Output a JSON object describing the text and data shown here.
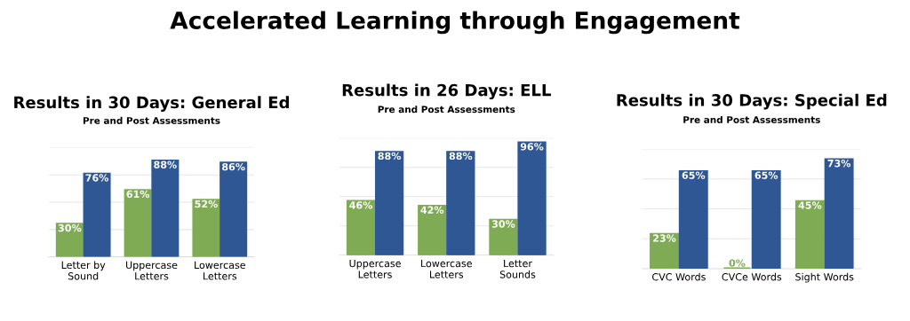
{
  "chart_data": [
    {
      "type": "bar",
      "title": "Results in 30 Days: General Ed",
      "subtitle": "Pre and Post Assessments",
      "annotations": [
        "Accelerated Learning through Engagement"
      ],
      "categories": [
        "Letter by\nSound",
        "Uppercase\nLetters",
        "Lowercase\nLetters"
      ],
      "series": [
        {
          "color": "#7fab55",
          "values": [
            30,
            61,
            52
          ],
          "value_labels": [
            "30%",
            "61%",
            "52%"
          ]
        },
        {
          "color": "#2f5793",
          "values": [
            76,
            88,
            86
          ],
          "value_labels": [
            "76%",
            "88%",
            "86%"
          ]
        }
      ],
      "ylim": [
        0,
        100
      ],
      "yticks": [
        {
          "value": 25,
          "label": null
        },
        {
          "value": 50,
          "label": null
        },
        {
          "value": 75,
          "label": null
        },
        {
          "value": 100,
          "label": null
        }
      ],
      "grid": "y",
      "tick_labels": "x"
    },
    {
      "type": "bar",
      "title": "Results in 26 Days: ELL",
      "subtitle": "Pre and Post Assessments",
      "categories": [
        "Uppercase\nLetters",
        "Lowercase\nLetters",
        "Letter\nSounds"
      ],
      "series": [
        {
          "color": "#7fab55",
          "values": [
            46,
            42,
            30
          ],
          "value_labels": [
            "46%",
            "42%",
            "30%"
          ]
        },
        {
          "color": "#2f5793",
          "values": [
            88,
            88,
            96
          ],
          "value_labels": [
            "88%",
            "88%",
            "96%"
          ]
        }
      ],
      "ylim": [
        0,
        100
      ],
      "yticks": [
        {
          "value": 25,
          "label": null
        },
        {
          "value": 50,
          "label": null
        },
        {
          "value": 75,
          "label": null
        },
        {
          "value": 100,
          "label": null
        }
      ],
      "grid": "y",
      "tick_labels": "x"
    },
    {
      "type": "bar",
      "title": "Results in 30 Days: Special Ed",
      "subtitle": "Pre and Post Assessments",
      "categories": [
        "CVC Words",
        "CVCe Words",
        "Sight Words"
      ],
      "series": [
        {
          "color": "#7fab55",
          "values": [
            23,
            0,
            45
          ],
          "value_labels": [
            "23%",
            "0%",
            "45%"
          ]
        },
        {
          "color": "#2f5793",
          "values": [
            65,
            65,
            73
          ],
          "value_labels": [
            "65%",
            "65%",
            "73%"
          ]
        }
      ],
      "ylim": [
        0,
        80
      ],
      "yticks": [
        {
          "value": 20,
          "label": null
        },
        {
          "value": 40,
          "label": null
        },
        {
          "value": 60,
          "label": null
        },
        {
          "value": 80,
          "label": null
        }
      ],
      "grid": "y",
      "tick_labels": "x"
    }
  ]
}
